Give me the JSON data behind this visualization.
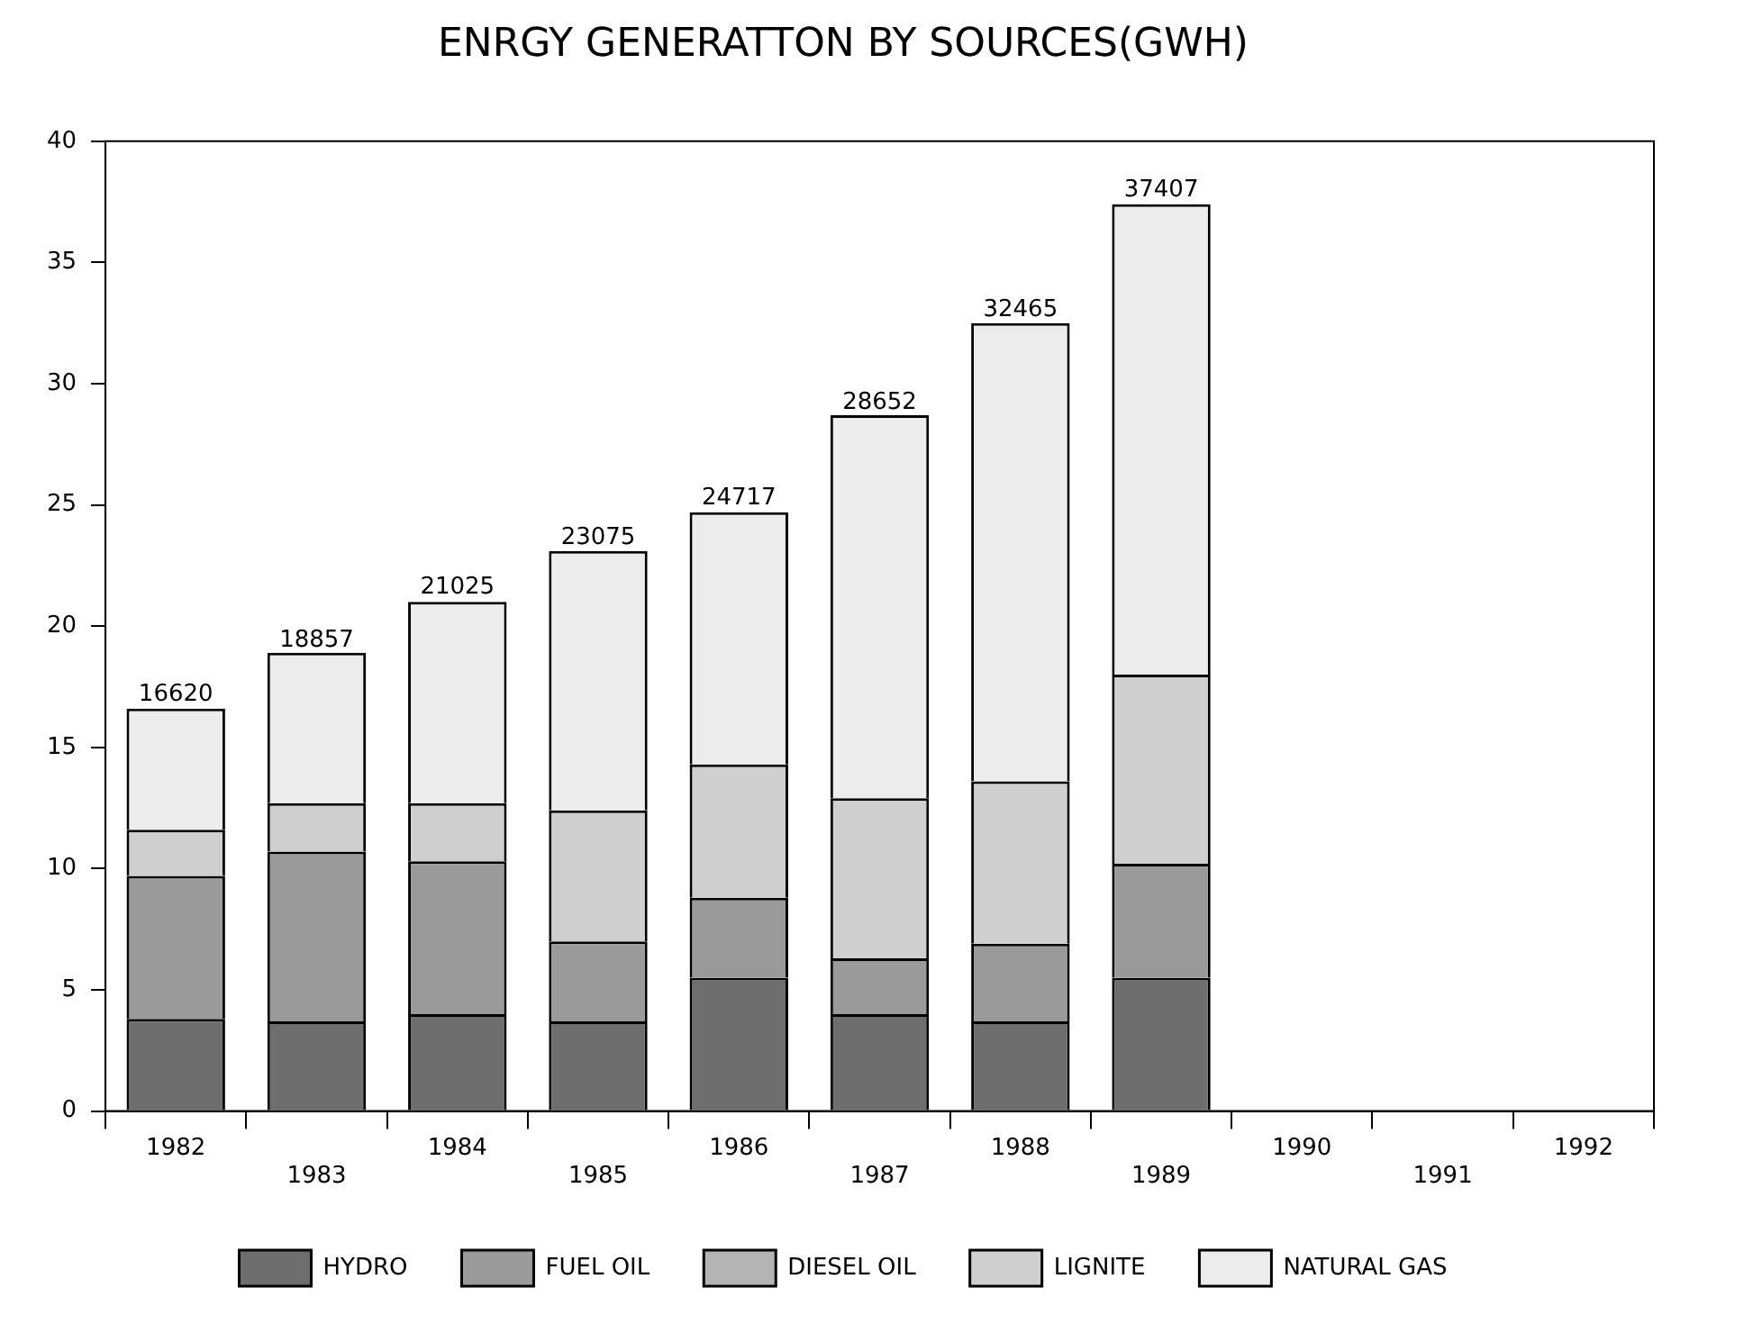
{
  "chart_data": {
    "type": "bar",
    "title": "ENRGY GENERATTON BY SOURCES(GWH)",
    "stacked": true,
    "legend": "bottom",
    "categories": [
      "1982",
      "1983",
      "1984",
      "1985",
      "1986",
      "1987",
      "1988",
      "1989",
      "1990",
      "1991",
      "1992"
    ],
    "series": [
      {
        "name": "HYDRO",
        "color": "#6e6e6e",
        "values": [
          3.8,
          3.7,
          4.0,
          3.7,
          5.5,
          4.0,
          3.7,
          5.5,
          null,
          null,
          null
        ]
      },
      {
        "name": "FUEL OIL",
        "color": "#9a9a9a",
        "values": [
          5.9,
          7.0,
          6.3,
          3.3,
          3.3,
          2.3,
          3.2,
          4.7,
          null,
          null,
          null
        ]
      },
      {
        "name": "DIESEL OIL",
        "color": "#b4b4b4",
        "values": [
          0,
          0,
          0,
          0,
          0,
          0,
          0,
          0,
          null,
          null,
          null
        ]
      },
      {
        "name": "LIGNITE",
        "color": "#cfcfcf",
        "values": [
          1.9,
          2.0,
          2.4,
          5.4,
          5.5,
          6.6,
          6.7,
          7.8,
          null,
          null,
          null
        ]
      },
      {
        "name": "NATURAL GAS",
        "color": "#ececec",
        "values": [
          5.0,
          6.2,
          8.3,
          10.7,
          10.4,
          15.8,
          18.9,
          19.4,
          null,
          null,
          null
        ]
      }
    ],
    "annotations": [
      {
        "text": "16620",
        "x": "1982",
        "y": 16.62
      },
      {
        "text": "18857",
        "x": "1983",
        "y": 18.857
      },
      {
        "text": "21025",
        "x": "1984",
        "y": 21.025
      },
      {
        "text": "23075",
        "x": "1985",
        "y": 23.075
      },
      {
        "text": "24717",
        "x": "1986",
        "y": 24.717
      },
      {
        "text": "28652",
        "x": "1987",
        "y": 28.652
      },
      {
        "text": "32465",
        "x": "1988",
        "y": 32.465
      },
      {
        "text": "37407",
        "x": "1989",
        "y": 37.407
      }
    ],
    "ylim": [
      0,
      40
    ],
    "yticks": [
      0,
      5,
      10,
      15,
      20,
      25,
      30,
      35,
      40
    ],
    "grid": false
  }
}
